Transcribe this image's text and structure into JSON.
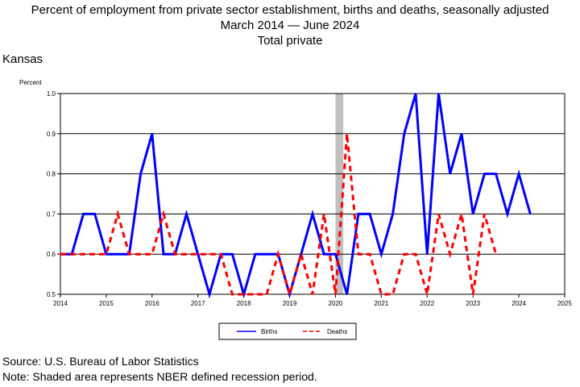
{
  "title": {
    "line1": "Percent of employment from private sector establishment, births and deaths, seasonally adjusted",
    "line2_start": "March 2014",
    "line2_end": "June 2024",
    "line3": "Total private"
  },
  "region": "Kansas",
  "footer": {
    "source": "Source: U.S. Bureau of Labor Statistics",
    "note": "Note: Shaded area represents NBER defined recession period."
  },
  "colors": {
    "births": "#0000ff",
    "deaths": "#ff0000",
    "recession": "#c0c0c0",
    "grid": "#000000"
  },
  "chart_data": {
    "type": "line",
    "ylabel": "Percent",
    "xlim": [
      2014,
      2025
    ],
    "ylim": [
      0.5,
      1.0
    ],
    "x_ticks": [
      "2014",
      "2015",
      "2016",
      "2017",
      "2018",
      "2019",
      "2020",
      "2021",
      "2022",
      "2023",
      "2024",
      "2025"
    ],
    "y_ticks": [
      "0.5",
      "0.6",
      "0.7",
      "0.8",
      "0.9",
      "1.0"
    ],
    "grid": true,
    "legend_position": "bottom-center",
    "recession": {
      "start": 2020.0,
      "end": 2020.17
    },
    "series": [
      {
        "name": "Births",
        "style": "solid",
        "x": [
          2014.0,
          2014.25,
          2014.5,
          2014.75,
          2015.0,
          2015.25,
          2015.5,
          2015.75,
          2016.0,
          2016.25,
          2016.5,
          2016.75,
          2017.0,
          2017.25,
          2017.5,
          2017.75,
          2018.0,
          2018.25,
          2018.5,
          2018.75,
          2019.0,
          2019.25,
          2019.5,
          2019.75,
          2020.0,
          2020.25,
          2020.5,
          2020.75,
          2021.0,
          2021.25,
          2021.5,
          2021.75,
          2022.0,
          2022.25,
          2022.5,
          2022.75,
          2023.0,
          2023.25,
          2023.5,
          2023.75,
          2024.0,
          2024.25
        ],
        "y": [
          0.6,
          0.6,
          0.7,
          0.7,
          0.6,
          0.6,
          0.6,
          0.8,
          0.9,
          0.6,
          0.6,
          0.7,
          0.6,
          0.5,
          0.6,
          0.6,
          0.5,
          0.6,
          0.6,
          0.6,
          0.5,
          0.6,
          0.7,
          0.6,
          0.6,
          0.5,
          0.7,
          0.7,
          0.6,
          0.7,
          0.9,
          1.0,
          0.6,
          1.0,
          0.8,
          0.9,
          0.7,
          0.8,
          0.8,
          0.7,
          0.8,
          0.7
        ]
      },
      {
        "name": "Deaths",
        "style": "dashed",
        "x": [
          2014.0,
          2014.25,
          2014.5,
          2014.75,
          2015.0,
          2015.25,
          2015.5,
          2015.75,
          2016.0,
          2016.25,
          2016.5,
          2016.75,
          2017.0,
          2017.25,
          2017.5,
          2017.75,
          2018.0,
          2018.25,
          2018.5,
          2018.75,
          2019.0,
          2019.25,
          2019.5,
          2019.75,
          2020.0,
          2020.25,
          2020.5,
          2020.75,
          2021.0,
          2021.25,
          2021.5,
          2021.75,
          2022.0,
          2022.25,
          2022.5,
          2022.75,
          2023.0,
          2023.25,
          2023.5
        ],
        "y": [
          0.6,
          0.6,
          0.6,
          0.6,
          0.6,
          0.7,
          0.6,
          0.6,
          0.6,
          0.7,
          0.6,
          0.6,
          0.6,
          0.6,
          0.6,
          0.5,
          0.5,
          0.5,
          0.5,
          0.6,
          0.5,
          0.6,
          0.5,
          0.7,
          0.5,
          0.9,
          0.6,
          0.6,
          0.5,
          0.5,
          0.6,
          0.6,
          0.5,
          0.7,
          0.6,
          0.7,
          0.5,
          0.7,
          0.6
        ]
      }
    ]
  }
}
